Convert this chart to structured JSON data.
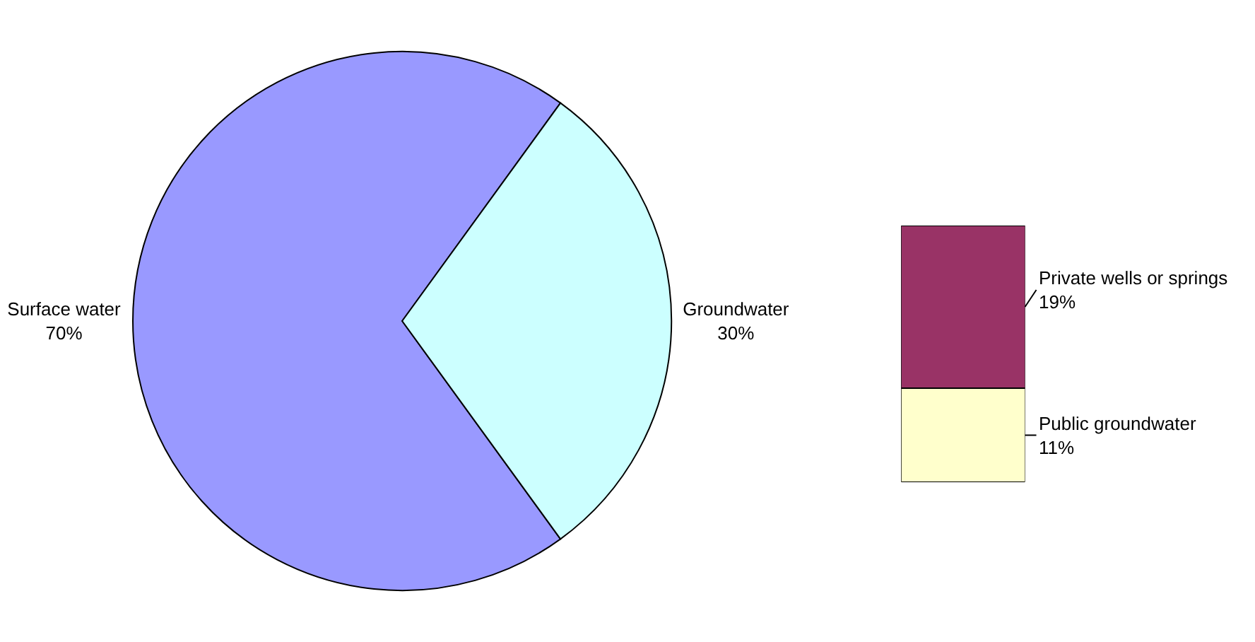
{
  "chart_data": [
    {
      "type": "pie",
      "categories": [
        "Surface water",
        "Groundwater"
      ],
      "values": [
        70,
        30
      ],
      "colors": [
        "#9999ff",
        "#ccffff"
      ],
      "value_labels": [
        "70%",
        "30%"
      ]
    },
    {
      "type": "bar",
      "stacked": true,
      "categories": [
        null
      ],
      "tick_labels": false,
      "series": [
        {
          "name": "Public groundwater",
          "color": "#ffffcc",
          "values": [
            11
          ],
          "value_labels": [
            "11%"
          ]
        },
        {
          "name": "Private wells or springs",
          "color": "#993366",
          "values": [
            19
          ],
          "value_labels": [
            "19%"
          ]
        }
      ]
    }
  ]
}
